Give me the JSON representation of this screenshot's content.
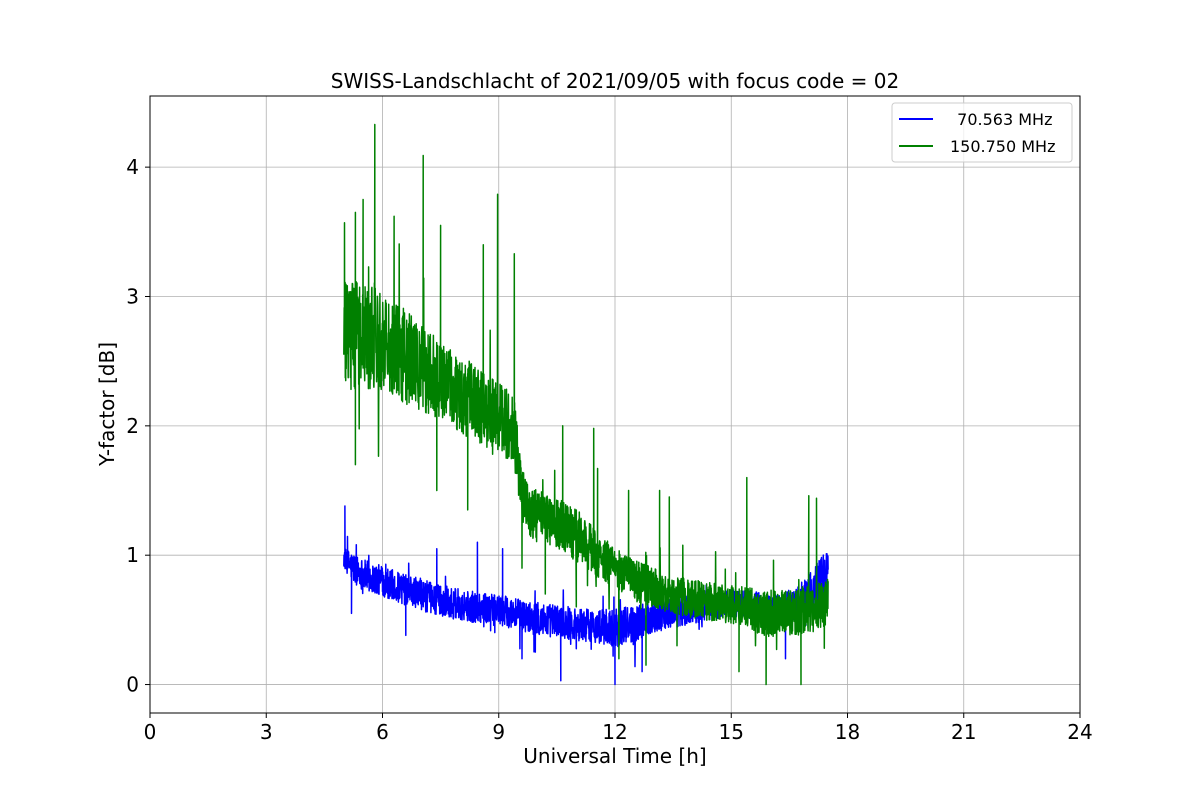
{
  "chart_data": {
    "type": "line",
    "title": "SWISS-Landschlacht of 2021/09/05 with focus code = 02",
    "xlabel": "Universal Time [h]",
    "ylabel": "Y-factor [dB]",
    "xlim": [
      0,
      24
    ],
    "ylim": [
      -0.22,
      4.55
    ],
    "xticks": [
      0,
      3,
      6,
      9,
      12,
      15,
      18,
      21,
      24
    ],
    "yticks": [
      0,
      1,
      2,
      3,
      4
    ],
    "grid": true,
    "legend_position": "top-right",
    "series": [
      {
        "name": "  70.563 MHz",
        "color": "#0000ff",
        "x": [
          5.0,
          5.25,
          5.5,
          5.75,
          6.0,
          6.25,
          6.5,
          6.75,
          7.0,
          7.25,
          7.5,
          7.75,
          8.0,
          8.25,
          8.5,
          8.75,
          9.0,
          9.25,
          9.5,
          9.75,
          10.0,
          10.25,
          10.5,
          10.75,
          11.0,
          11.25,
          11.5,
          11.75,
          12.0,
          12.25,
          12.5,
          12.75,
          13.0,
          13.25,
          13.5,
          13.75,
          14.0,
          14.25,
          14.5,
          14.75,
          15.0,
          15.25,
          15.5,
          15.75,
          16.0,
          16.25,
          16.5,
          16.75,
          17.0,
          17.25,
          17.5
        ],
        "y": [
          0.98,
          0.9,
          0.85,
          0.82,
          0.8,
          0.77,
          0.74,
          0.72,
          0.7,
          0.67,
          0.65,
          0.63,
          0.62,
          0.6,
          0.6,
          0.58,
          0.57,
          0.56,
          0.54,
          0.52,
          0.5,
          0.5,
          0.49,
          0.48,
          0.47,
          0.46,
          0.45,
          0.44,
          0.44,
          0.45,
          0.47,
          0.5,
          0.52,
          0.54,
          0.55,
          0.57,
          0.58,
          0.6,
          0.61,
          0.62,
          0.63,
          0.63,
          0.62,
          0.6,
          0.58,
          0.58,
          0.6,
          0.63,
          0.7,
          0.78,
          0.85
        ],
        "noise": [
          0.08,
          0.12,
          0.12,
          0.12,
          0.12,
          0.12,
          0.12,
          0.12,
          0.12,
          0.12,
          0.12,
          0.12,
          0.12,
          0.12,
          0.12,
          0.12,
          0.12,
          0.12,
          0.12,
          0.12,
          0.13,
          0.13,
          0.13,
          0.13,
          0.13,
          0.13,
          0.13,
          0.14,
          0.15,
          0.15,
          0.14,
          0.13,
          0.12,
          0.12,
          0.12,
          0.12,
          0.11,
          0.11,
          0.11,
          0.11,
          0.11,
          0.11,
          0.11,
          0.11,
          0.11,
          0.12,
          0.13,
          0.14,
          0.15,
          0.18,
          0.2
        ],
        "spikes": [
          [
            5.03,
            1.38
          ],
          [
            7.4,
            1.05
          ],
          [
            8.45,
            1.1
          ],
          [
            9.1,
            1.05
          ],
          [
            5.2,
            0.55
          ],
          [
            6.6,
            0.38
          ],
          [
            9.6,
            0.2
          ],
          [
            10.6,
            0.03
          ],
          [
            12.0,
            0.0
          ],
          [
            11.95,
            0.22
          ],
          [
            12.7,
            0.1
          ],
          [
            16.4,
            0.2
          ]
        ]
      },
      {
        "name": "150.750 MHz",
        "color": "#008000",
        "x": [
          5.0,
          5.25,
          5.5,
          5.75,
          6.0,
          6.25,
          6.5,
          6.75,
          7.0,
          7.25,
          7.5,
          7.75,
          8.0,
          8.25,
          8.5,
          8.75,
          9.0,
          9.25,
          9.4,
          9.6,
          9.75,
          10.0,
          10.25,
          10.5,
          10.75,
          11.0,
          11.25,
          11.5,
          11.75,
          12.0,
          12.25,
          12.5,
          12.75,
          13.0,
          13.25,
          13.5,
          13.75,
          14.0,
          14.25,
          14.5,
          14.75,
          15.0,
          15.25,
          15.5,
          15.75,
          16.0,
          16.25,
          16.5,
          16.75,
          17.0,
          17.25,
          17.5
        ],
        "y": [
          2.7,
          2.7,
          2.7,
          2.7,
          2.68,
          2.62,
          2.55,
          2.5,
          2.45,
          2.4,
          2.35,
          2.3,
          2.25,
          2.2,
          2.15,
          2.1,
          2.05,
          2.0,
          1.95,
          1.45,
          1.35,
          1.3,
          1.28,
          1.25,
          1.2,
          1.15,
          1.1,
          1.0,
          0.95,
          0.9,
          0.85,
          0.8,
          0.78,
          0.75,
          0.72,
          0.7,
          0.68,
          0.66,
          0.65,
          0.64,
          0.63,
          0.62,
          0.6,
          0.58,
          0.55,
          0.55,
          0.55,
          0.55,
          0.56,
          0.58,
          0.6,
          0.65
        ],
        "noise": [
          0.42,
          0.42,
          0.42,
          0.42,
          0.4,
          0.38,
          0.37,
          0.35,
          0.33,
          0.32,
          0.3,
          0.3,
          0.3,
          0.3,
          0.28,
          0.28,
          0.28,
          0.28,
          0.28,
          0.22,
          0.2,
          0.2,
          0.2,
          0.2,
          0.2,
          0.2,
          0.2,
          0.18,
          0.17,
          0.16,
          0.16,
          0.16,
          0.16,
          0.15,
          0.15,
          0.15,
          0.15,
          0.15,
          0.15,
          0.15,
          0.15,
          0.15,
          0.16,
          0.17,
          0.17,
          0.18,
          0.18,
          0.18,
          0.18,
          0.18,
          0.18,
          0.18
        ],
        "spikes": [
          [
            5.02,
            3.57
          ],
          [
            5.3,
            3.65
          ],
          [
            5.5,
            3.75
          ],
          [
            5.8,
            4.33
          ],
          [
            6.3,
            3.62
          ],
          [
            7.05,
            4.09
          ],
          [
            7.5,
            3.55
          ],
          [
            8.6,
            3.4
          ],
          [
            8.97,
            3.79
          ],
          [
            9.4,
            3.33
          ],
          [
            10.65,
            2.0
          ],
          [
            11.45,
            1.98
          ],
          [
            11.55,
            1.67
          ],
          [
            12.35,
            1.5
          ],
          [
            13.15,
            1.5
          ],
          [
            13.4,
            1.45
          ],
          [
            15.4,
            1.6
          ],
          [
            17.0,
            1.46
          ],
          [
            17.2,
            1.44
          ],
          [
            5.05,
            2.35
          ],
          [
            5.3,
            1.7
          ],
          [
            5.9,
            2.0
          ],
          [
            7.4,
            1.5
          ],
          [
            8.2,
            1.35
          ],
          [
            9.6,
            0.9
          ],
          [
            10.2,
            0.7
          ],
          [
            11.0,
            0.6
          ],
          [
            12.1,
            0.2
          ],
          [
            12.8,
            0.15
          ],
          [
            13.6,
            0.3
          ],
          [
            15.2,
            0.1
          ],
          [
            15.9,
            0.0
          ],
          [
            16.8,
            0.0
          ],
          [
            17.4,
            0.28
          ]
        ]
      }
    ]
  }
}
